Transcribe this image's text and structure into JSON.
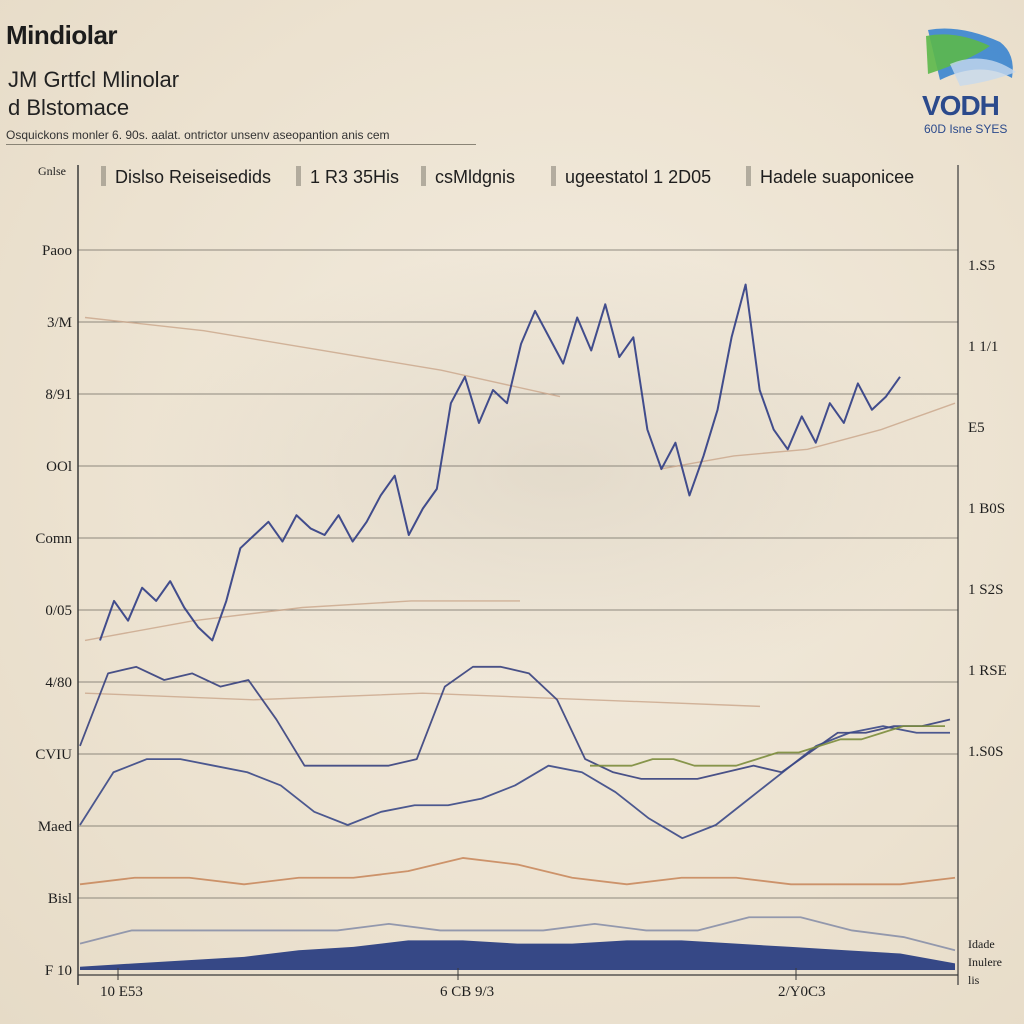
{
  "header": {
    "title": "Mindiolar",
    "subtitle_line1": "JM Grtfcl Mlinolar",
    "subtitle_line2": "d Blstomace",
    "caption": "Osquickons monler 6. 90s. aalat. ontrictor unsenv aseopantion anis cem"
  },
  "logo": {
    "text": "VODH",
    "subtext": "60D Isne SYES",
    "colors": [
      "#2f7fd0",
      "#5cb84a",
      "#2b4a8c"
    ]
  },
  "chart_data": {
    "type": "line",
    "legend": {
      "placement": "top",
      "entries": [
        "Dislso Reiseisedids",
        "1 R3 35His",
        "csMldgnis",
        "ugeestatol 1 2D05",
        "Hadele suaponicee"
      ]
    },
    "y_left_label_top": "Gnlse",
    "left_ticks": [
      "Paoo",
      "3/M",
      "8/91",
      "OOl",
      "Comn",
      "0/05",
      "4/80",
      "CVIU",
      "Maed",
      "Bisl",
      "F 10"
    ],
    "right_ticks": [
      "1.S5",
      "1 1/1",
      "E5",
      "1 B0S",
      "1 S2S",
      "1 RSE",
      "1.S0S",
      "Idade",
      "Inulere",
      "lis"
    ],
    "x_ticks": [
      "10 E53",
      "6 CB 9/3",
      "2/Y0C3"
    ],
    "ylim": [
      0,
      11
    ],
    "grid": "horizontal",
    "series": [
      {
        "color": "#2f3c84",
        "values": [
          5.0,
          5.6,
          5.3,
          5.8,
          5.6,
          5.9,
          5.5,
          5.2,
          5.0,
          5.6,
          6.4,
          6.6,
          6.8,
          6.5,
          6.9,
          6.7,
          6.6,
          6.9,
          6.5,
          6.8,
          7.2,
          7.5,
          6.6,
          7.0,
          7.3,
          8.6,
          9.0,
          8.3,
          8.8,
          8.6,
          9.5,
          10.0,
          9.6,
          9.2,
          9.9,
          9.4,
          10.1,
          9.3,
          9.6,
          8.2,
          7.6,
          8.0,
          7.2,
          7.8,
          8.5,
          9.6,
          10.4,
          8.8,
          8.2,
          7.9,
          8.4,
          8.0,
          8.6,
          8.3,
          8.9,
          8.5,
          8.7,
          9.0
        ]
      },
      {
        "color": "#36407e",
        "values": [
          3.4,
          4.5,
          4.6,
          4.4,
          4.5,
          4.3,
          4.4,
          3.8,
          3.1,
          3.1,
          3.1,
          3.1,
          3.2,
          4.3,
          4.6,
          4.6,
          4.5,
          4.1,
          3.2,
          3.0,
          2.9,
          2.9,
          2.9,
          3.0,
          3.1,
          3.0,
          3.3,
          3.6,
          3.6,
          3.7,
          3.7,
          3.8
        ]
      },
      {
        "color": "#3a4887",
        "values": [
          2.2,
          3.0,
          3.2,
          3.2,
          3.1,
          3.0,
          2.8,
          2.4,
          2.2,
          2.4,
          2.5,
          2.5,
          2.6,
          2.8,
          3.1,
          3.0,
          2.7,
          2.3,
          2.0,
          2.2,
          2.6,
          3.0,
          3.4,
          3.6,
          3.7,
          3.6,
          3.6
        ]
      },
      {
        "color": "#7b8c3c",
        "values": [
          3.1,
          3.1,
          3.1,
          3.2,
          3.2,
          3.1,
          3.1,
          3.1,
          3.2,
          3.3,
          3.3,
          3.4,
          3.5,
          3.5,
          3.6,
          3.7,
          3.7,
          3.7
        ]
      },
      {
        "color": "#c98a5e",
        "values": [
          1.3,
          1.4,
          1.4,
          1.3,
          1.4,
          1.4,
          1.5,
          1.7,
          1.6,
          1.4,
          1.3,
          1.4,
          1.4,
          1.3,
          1.3,
          1.3,
          1.4
        ]
      },
      {
        "color": "#8a90a8",
        "values": [
          0.4,
          0.6,
          0.6,
          0.6,
          0.6,
          0.6,
          0.7,
          0.6,
          0.6,
          0.6,
          0.7,
          0.6,
          0.6,
          0.8,
          0.8,
          0.6,
          0.5,
          0.3
        ]
      },
      {
        "color": "#2c3f82",
        "type": "area",
        "values": [
          0.05,
          0.1,
          0.15,
          0.2,
          0.3,
          0.35,
          0.45,
          0.45,
          0.4,
          0.4,
          0.45,
          0.45,
          0.4,
          0.35,
          0.3,
          0.25,
          0.1
        ]
      }
    ],
    "guides": [
      {
        "color": "#c9a58a",
        "values": [
          9.9,
          9.7,
          9.4,
          9.1,
          8.7
        ]
      },
      {
        "color": "#c9a58a",
        "values": [
          7.6,
          7.8,
          7.9,
          8.2,
          8.6
        ]
      },
      {
        "color": "#c9a58a",
        "values": [
          5.0,
          5.3,
          5.5,
          5.6,
          5.6
        ]
      },
      {
        "color": "#c9a58a",
        "values": [
          4.2,
          4.1,
          4.2,
          4.1,
          4.0
        ]
      }
    ]
  }
}
